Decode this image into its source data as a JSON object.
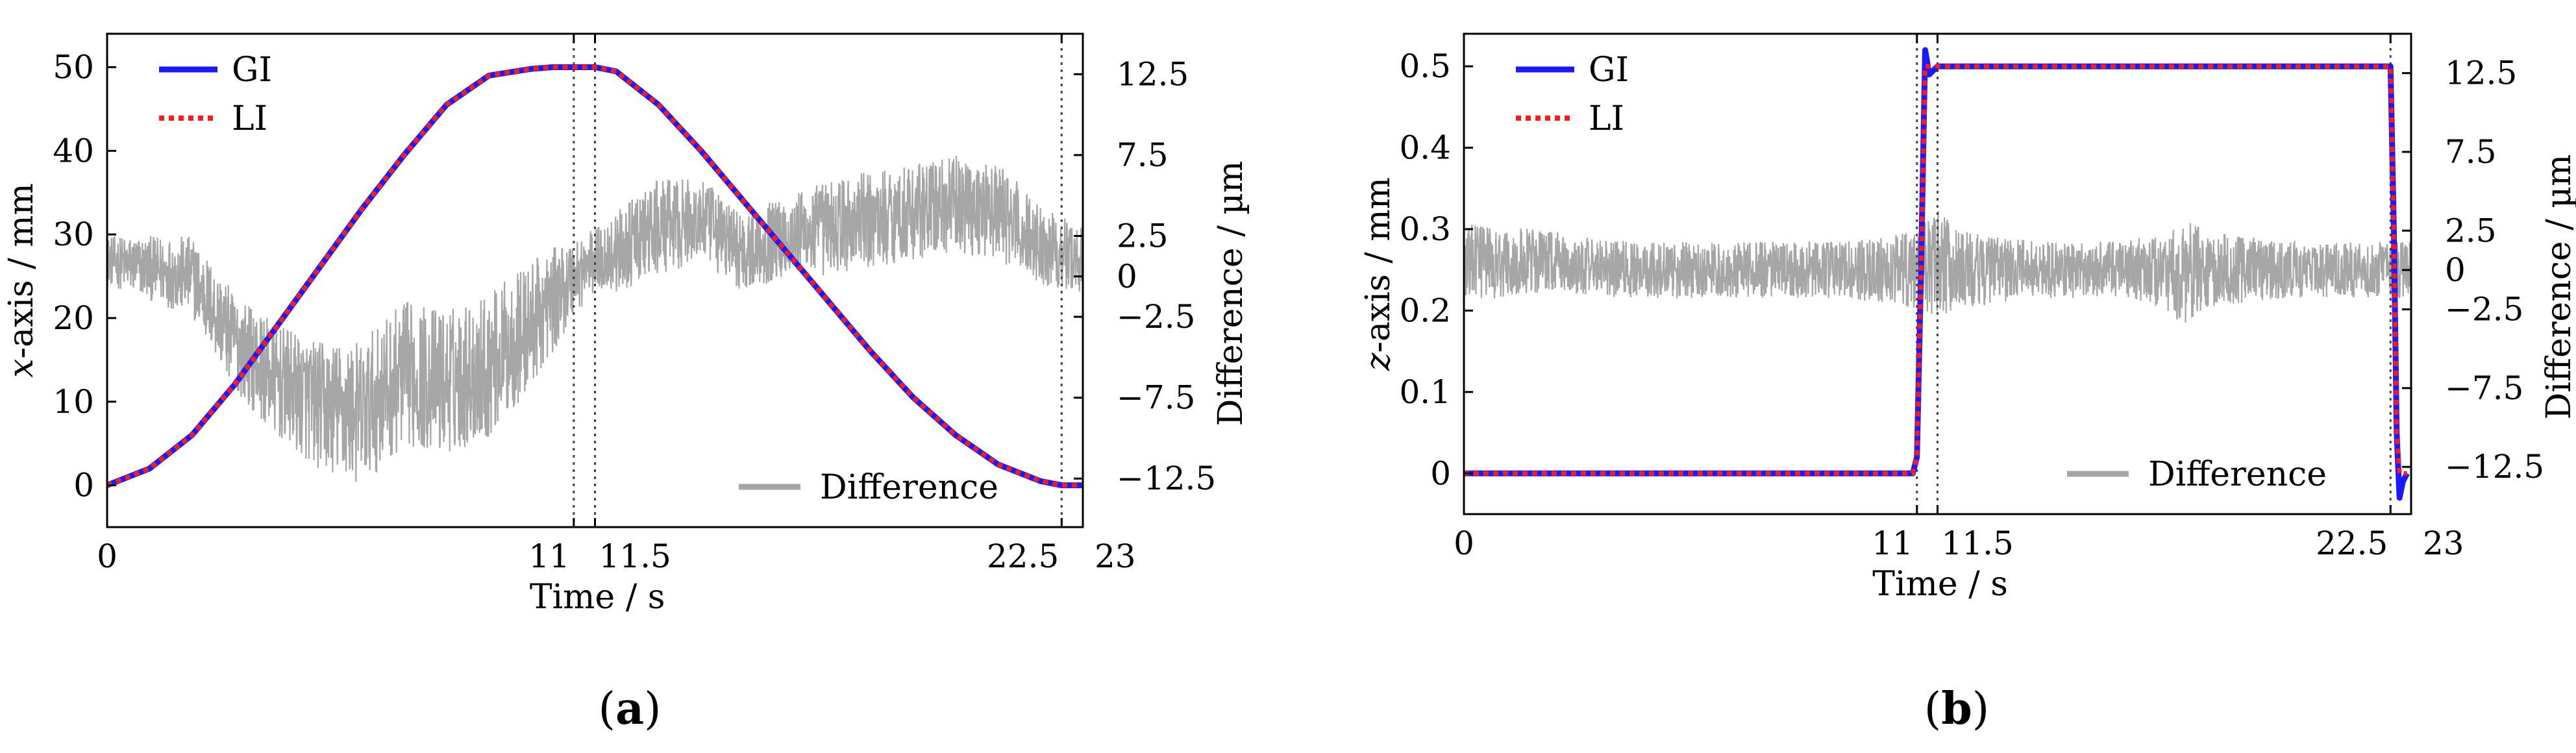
{
  "figure": {
    "panels": [
      {
        "caption": "a"
      },
      {
        "caption": "b"
      }
    ]
  },
  "chart_data": [
    {
      "type": "line",
      "panel": "a",
      "xlabel": "Time / s",
      "ylabel_var": "x",
      "ylabel_rest": "-axis / mm",
      "y2label": "Difference / µm",
      "xlim": [
        0,
        23
      ],
      "ylim": [
        -5,
        54
      ],
      "y2lim": [
        -15.5,
        15
      ],
      "x_ticks": [
        {
          "value": 0,
          "label": "0"
        },
        {
          "value": 11,
          "label": "11"
        },
        {
          "value": 11.5,
          "label": "11.5"
        },
        {
          "value": 22.5,
          "label": "22.5"
        },
        {
          "value": 23,
          "label": "23"
        }
      ],
      "y_ticks": [
        {
          "value": 0,
          "label": "0"
        },
        {
          "value": 10,
          "label": "10"
        },
        {
          "value": 20,
          "label": "20"
        },
        {
          "value": 30,
          "label": "30"
        },
        {
          "value": 40,
          "label": "40"
        },
        {
          "value": 50,
          "label": "50"
        }
      ],
      "y2_ticks": [
        {
          "value": 12.5,
          "label": "12.5"
        },
        {
          "value": 7.5,
          "label": "7.5"
        },
        {
          "value": 2.5,
          "label": "2.5"
        },
        {
          "value": 0,
          "label": "0"
        },
        {
          "value": -2.5,
          "label": "−2.5"
        },
        {
          "value": -7.5,
          "label": "−7.5"
        },
        {
          "value": -12.5,
          "label": "−12.5"
        }
      ],
      "vlines": [
        11,
        11.5,
        22.5,
        23
      ],
      "series": [
        {
          "name": "GI",
          "color": "#1a1aff",
          "style": "solid",
          "x": [
            0,
            1,
            2,
            3,
            4,
            5,
            6,
            7,
            8,
            9,
            10,
            10.5,
            11,
            11.5,
            12,
            13,
            14,
            15,
            16,
            17,
            18,
            19,
            20,
            21,
            22,
            22.5,
            23
          ],
          "y": [
            0,
            2,
            6,
            12,
            19,
            26,
            33,
            39.5,
            45.5,
            49,
            49.8,
            50,
            50,
            50,
            49.5,
            45.5,
            40,
            34,
            28,
            22,
            16,
            10.5,
            6,
            2.5,
            0.5,
            0,
            0
          ]
        },
        {
          "name": "LI",
          "color": "#ff1a1a",
          "style": "dotted",
          "x": [
            0,
            1,
            2,
            3,
            4,
            5,
            6,
            7,
            8,
            9,
            10,
            10.5,
            11,
            11.5,
            12,
            13,
            14,
            15,
            16,
            17,
            18,
            19,
            20,
            21,
            22,
            22.5,
            23
          ],
          "y": [
            0,
            2,
            6,
            12,
            19,
            26,
            33,
            39.5,
            45.5,
            49,
            49.8,
            50,
            50,
            50,
            49.5,
            45.5,
            40,
            34,
            28,
            22,
            16,
            10.5,
            6,
            2.5,
            0.5,
            0,
            0
          ]
        },
        {
          "name": "Difference",
          "color": "#a6a6a6",
          "axis": "right",
          "noise": true,
          "x": [
            0,
            1,
            2,
            3,
            4,
            5,
            6,
            7,
            8,
            9,
            10,
            11,
            11.5,
            12,
            13,
            14,
            15,
            16,
            17,
            18,
            19,
            20,
            21,
            22,
            23
          ],
          "y": [
            1,
            0.5,
            0,
            -4,
            -6.5,
            -8,
            -8.5,
            -6,
            -6.5,
            -5.5,
            -3,
            0,
            1,
            1.5,
            3,
            3.5,
            1.5,
            2.5,
            3,
            3.5,
            4,
            4.5,
            4,
            2,
            1
          ],
          "noise_amplitude": [
            1.5,
            2,
            2.5,
            3,
            3.5,
            4,
            4.5,
            4.5,
            4.5,
            4.5,
            4,
            2.5,
            2,
            2.5,
            3,
            2.5,
            2.5,
            2.5,
            3,
            3,
            3,
            3,
            3,
            2.5,
            2
          ]
        }
      ],
      "legend": [
        {
          "name": "GI",
          "color": "#1a1aff",
          "style": "solid",
          "position": "top-left"
        },
        {
          "name": "LI",
          "color": "#ff1a1a",
          "style": "dotted",
          "position": "top-left"
        },
        {
          "name": "Difference",
          "color": "#a6a6a6",
          "style": "solid",
          "position": "bottom-right"
        }
      ]
    },
    {
      "type": "line",
      "panel": "b",
      "xlabel": "Time / s",
      "ylabel_var": "z",
      "ylabel_rest": "-axis / mm",
      "y2label": "Difference / µm",
      "xlim": [
        0,
        23
      ],
      "ylim": [
        -0.05,
        0.54
      ],
      "y2lim": [
        -15.5,
        15
      ],
      "x_ticks": [
        {
          "value": 0,
          "label": "0"
        },
        {
          "value": 11,
          "label": "11"
        },
        {
          "value": 11.5,
          "label": "11.5"
        },
        {
          "value": 22.5,
          "label": "22.5"
        },
        {
          "value": 23,
          "label": "23"
        }
      ],
      "y_ticks": [
        {
          "value": 0,
          "label": "0"
        },
        {
          "value": 0.1,
          "label": "0.1"
        },
        {
          "value": 0.2,
          "label": "0.2"
        },
        {
          "value": 0.3,
          "label": "0.3"
        },
        {
          "value": 0.4,
          "label": "0.4"
        },
        {
          "value": 0.5,
          "label": "0.5"
        }
      ],
      "y2_ticks": [
        {
          "value": 12.5,
          "label": "12.5"
        },
        {
          "value": 7.5,
          "label": "7.5"
        },
        {
          "value": 2.5,
          "label": "2.5"
        },
        {
          "value": 0,
          "label": "0"
        },
        {
          "value": -2.5,
          "label": "−2.5"
        },
        {
          "value": -7.5,
          "label": "−7.5"
        },
        {
          "value": -12.5,
          "label": "−12.5"
        }
      ],
      "vlines": [
        11,
        11.5,
        22.5,
        23
      ],
      "series": [
        {
          "name": "GI",
          "color": "#1a1aff",
          "style": "solid",
          "x": [
            0,
            10.9,
            11.0,
            11.1,
            11.2,
            11.3,
            11.5,
            12,
            22.5,
            22.58,
            22.65,
            22.72,
            22.8,
            22.9
          ],
          "y": [
            0,
            0,
            0.02,
            0.25,
            0.52,
            0.49,
            0.5,
            0.5,
            0.5,
            0.3,
            0.05,
            -0.03,
            -0.01,
            0
          ]
        },
        {
          "name": "LI",
          "color": "#ff1a1a",
          "style": "dotted",
          "x": [
            0,
            10.9,
            11.0,
            11.1,
            11.2,
            11.3,
            11.5,
            12,
            22.5,
            22.58,
            22.65,
            22.72,
            22.8,
            22.9
          ],
          "y": [
            0,
            0,
            0.02,
            0.25,
            0.5,
            0.5,
            0.5,
            0.5,
            0.5,
            0.3,
            0.05,
            0,
            0,
            0
          ]
        },
        {
          "name": "Difference",
          "color": "#a6a6a6",
          "axis": "right",
          "noise": true,
          "x": [
            0,
            2,
            4,
            6,
            8,
            10,
            11,
            11.5,
            12,
            14,
            16,
            17,
            17.5,
            18,
            20,
            22,
            23
          ],
          "y": [
            0.5,
            0.5,
            0,
            0,
            0,
            0,
            0,
            0.5,
            0,
            0,
            0,
            0,
            0,
            0,
            0,
            0,
            0
          ],
          "noise_amplitude": [
            2.5,
            2,
            1.8,
            1.8,
            1.8,
            2,
            2.5,
            3.5,
            2.5,
            1.8,
            1.8,
            2.5,
            3.5,
            2.5,
            1.8,
            1.8,
            1.8
          ]
        }
      ],
      "legend": [
        {
          "name": "GI",
          "color": "#1a1aff",
          "style": "solid",
          "position": "top-left"
        },
        {
          "name": "LI",
          "color": "#ff1a1a",
          "style": "dotted",
          "position": "top-left"
        },
        {
          "name": "Difference",
          "color": "#a6a6a6",
          "style": "solid",
          "position": "bottom-right"
        }
      ]
    }
  ]
}
